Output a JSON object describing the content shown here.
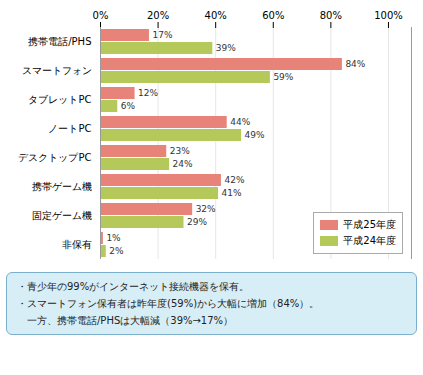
{
  "chart_data": {
    "type": "bar",
    "orientation": "horizontal",
    "categories": [
      "携帯電話/PHS",
      "スマートフォン",
      "タブレットPC",
      "ノートPC",
      "デスクトップPC",
      "携帯ゲーム機",
      "固定ゲーム機",
      "非保有"
    ],
    "series": [
      {
        "name": "平成25年度",
        "color": "#e8837a",
        "values": [
          17,
          84,
          12,
          44,
          23,
          42,
          32,
          1
        ],
        "value_labels": [
          "17%",
          "84%",
          "12%",
          "44%",
          "23%",
          "42%",
          "32%",
          "1%"
        ]
      },
      {
        "name": "平成24年度",
        "color": "#b5c95a",
        "values": [
          39,
          59,
          6,
          49,
          24,
          41,
          29,
          2
        ],
        "value_labels": [
          "39%",
          "59%",
          "6%",
          "49%",
          "24%",
          "41%",
          "29%",
          "2%"
        ]
      }
    ],
    "xlim": [
      0,
      108
    ],
    "xticks": [
      {
        "value": 0,
        "label": "0%"
      },
      {
        "value": 20,
        "label": "20%"
      },
      {
        "value": 40,
        "label": "40%"
      },
      {
        "value": 60,
        "label": "60%"
      },
      {
        "value": 80,
        "label": "80%"
      },
      {
        "value": 100,
        "label": "100%"
      }
    ],
    "grid": true,
    "legend": "lower right",
    "data_labels": true,
    "annotations": [
      "・青少年の99%がインターネット接続機器を保有。",
      "・スマートフォン保有者は昨年度(59%)から大幅に増加（84%）。",
      "　一方、携帯電話/PHSは大幅減（39%→17%）"
    ]
  }
}
